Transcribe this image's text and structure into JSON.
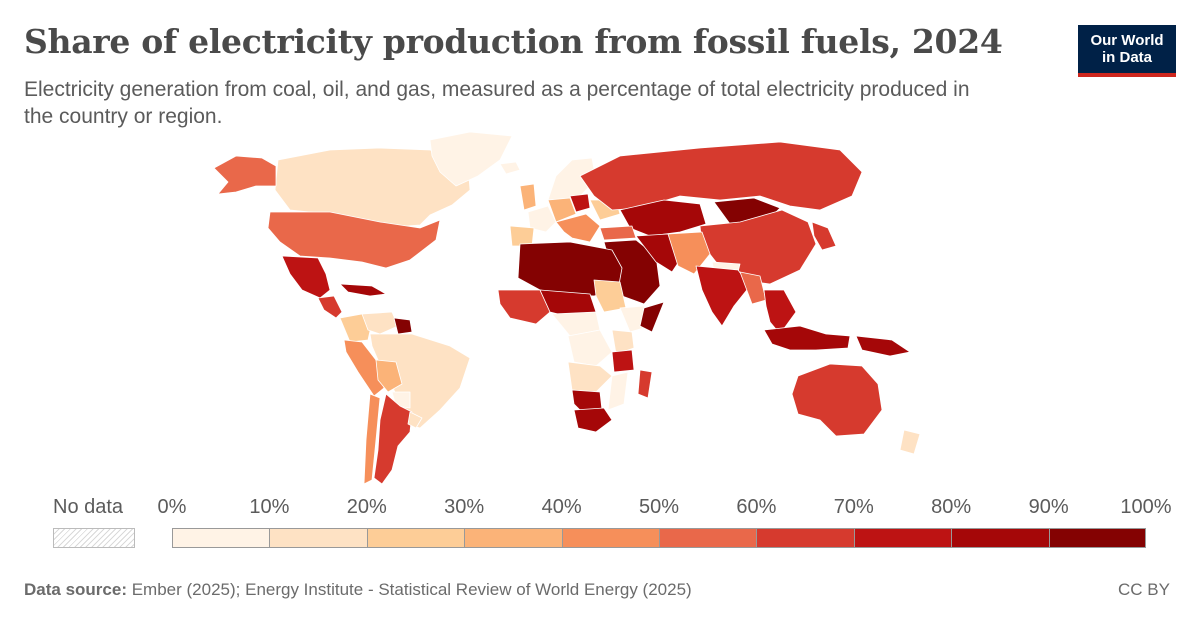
{
  "title": "Share of electricity production from fossil fuels, 2024",
  "subtitle": "Electricity generation from coal, oil, and gas, measured as a percentage of total electricity produced in the country or region.",
  "logo": {
    "line1": "Our World",
    "line2": "in Data"
  },
  "legend": {
    "no_data_label": "No data",
    "ticks": [
      "0%",
      "10%",
      "20%",
      "30%",
      "40%",
      "50%",
      "60%",
      "70%",
      "80%",
      "90%",
      "100%"
    ],
    "colors": [
      "#fff3e6",
      "#fee2c4",
      "#fdcd97",
      "#fbb378",
      "#f68f5a",
      "#e9684a",
      "#d63a2e",
      "#bd1313",
      "#a50708",
      "#840202"
    ]
  },
  "footer": {
    "source_label": "Data source:",
    "source_text": "Ember (2025); Energy Institute - Statistical Review of World Energy (2025)",
    "license": "CC BY"
  },
  "map_data": {
    "type": "choropleth",
    "metric": "Share of electricity production from fossil fuels (%)",
    "year": 2024,
    "regions": [
      {
        "name": "Canada",
        "bin": 1
      },
      {
        "name": "United States",
        "bin": 5
      },
      {
        "name": "Alaska",
        "bin": 5
      },
      {
        "name": "Greenland",
        "bin": 0
      },
      {
        "name": "Mexico",
        "bin": 7
      },
      {
        "name": "Central America",
        "bin": 6
      },
      {
        "name": "Caribbean",
        "bin": 8
      },
      {
        "name": "Colombia",
        "bin": 2
      },
      {
        "name": "Venezuela",
        "bin": 1
      },
      {
        "name": "Guyana/Suriname",
        "bin": 9
      },
      {
        "name": "Ecuador/Peru",
        "bin": 4
      },
      {
        "name": "Brazil",
        "bin": 1
      },
      {
        "name": "Bolivia",
        "bin": 3
      },
      {
        "name": "Paraguay",
        "bin": 0
      },
      {
        "name": "Argentina",
        "bin": 6
      },
      {
        "name": "Chile",
        "bin": 4
      },
      {
        "name": "Uruguay",
        "bin": 1
      },
      {
        "name": "Iceland",
        "bin": 0
      },
      {
        "name": "Norway/Sweden/Finland",
        "bin": 0
      },
      {
        "name": "United Kingdom",
        "bin": 3
      },
      {
        "name": "France",
        "bin": 0
      },
      {
        "name": "Iberia",
        "bin": 2
      },
      {
        "name": "Germany/Central Europe",
        "bin": 3
      },
      {
        "name": "Poland",
        "bin": 7
      },
      {
        "name": "Italy/Balkans",
        "bin": 4
      },
      {
        "name": "Ukraine",
        "bin": 2
      },
      {
        "name": "Russia",
        "bin": 6
      },
      {
        "name": "Kazakhstan/Central Asia",
        "bin": 8
      },
      {
        "name": "Mongolia",
        "bin": 9
      },
      {
        "name": "China",
        "bin": 6
      },
      {
        "name": "Korea/Japan",
        "bin": 6
      },
      {
        "name": "Turkey",
        "bin": 5
      },
      {
        "name": "Middle East",
        "bin": 9
      },
      {
        "name": "Iran/Gulf",
        "bin": 8
      },
      {
        "name": "Afghanistan/Pakistan",
        "bin": 4
      },
      {
        "name": "Nepal/Bhutan",
        "bin": 0
      },
      {
        "name": "India",
        "bin": 7
      },
      {
        "name": "Bangladesh/Myanmar",
        "bin": 5
      },
      {
        "name": "Southeast Asia",
        "bin": 7
      },
      {
        "name": "Indonesia",
        "bin": 8
      },
      {
        "name": "Papua New Guinea",
        "bin": 8
      },
      {
        "name": "Australia",
        "bin": 6
      },
      {
        "name": "New Zealand",
        "bin": 1
      },
      {
        "name": "North Africa",
        "bin": 9
      },
      {
        "name": "West Africa",
        "bin": 6
      },
      {
        "name": "Sahel",
        "bin": 8
      },
      {
        "name": "Sudan",
        "bin": 2
      },
      {
        "name": "Ethiopia",
        "bin": 0
      },
      {
        "name": "Central Africa",
        "bin": 0
      },
      {
        "name": "Congo",
        "bin": 0
      },
      {
        "name": "East Africa",
        "bin": 1
      },
      {
        "name": "Tanzania",
        "bin": 7
      },
      {
        "name": "Angola/Zambia",
        "bin": 1
      },
      {
        "name": "Madagascar",
        "bin": 6
      },
      {
        "name": "Namibia/Botswana",
        "bin": 8
      },
      {
        "name": "South Africa",
        "bin": 8
      },
      {
        "name": "Mozambique",
        "bin": 0
      },
      {
        "name": "Somalia",
        "bin": 9
      }
    ]
  }
}
